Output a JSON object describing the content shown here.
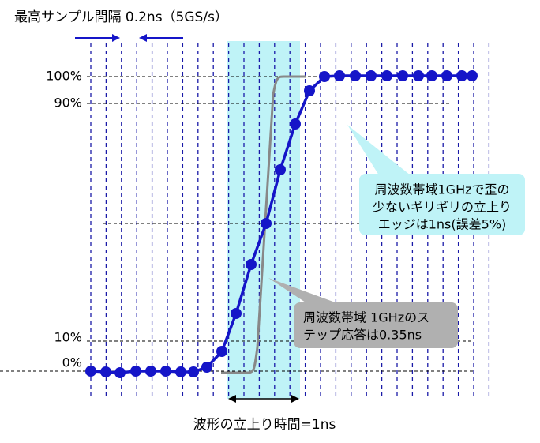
{
  "title": "最高サンプル間隔  0.2ns（5GS/s）",
  "axis_labels": [
    "100%",
    "90%",
    "10%",
    "0%"
  ],
  "callouts": [
    {
      "lines": [
        "周波数帯域1GHzで歪の",
        "少ないギリギリの立上り",
        "エッジは1ns(誤差5%)"
      ]
    },
    {
      "lines": [
        "周波数帯域 1GHzのス",
        "テップ応答は0.35ns"
      ]
    }
  ],
  "footer": "波形の立上り時間=1ns"
}
